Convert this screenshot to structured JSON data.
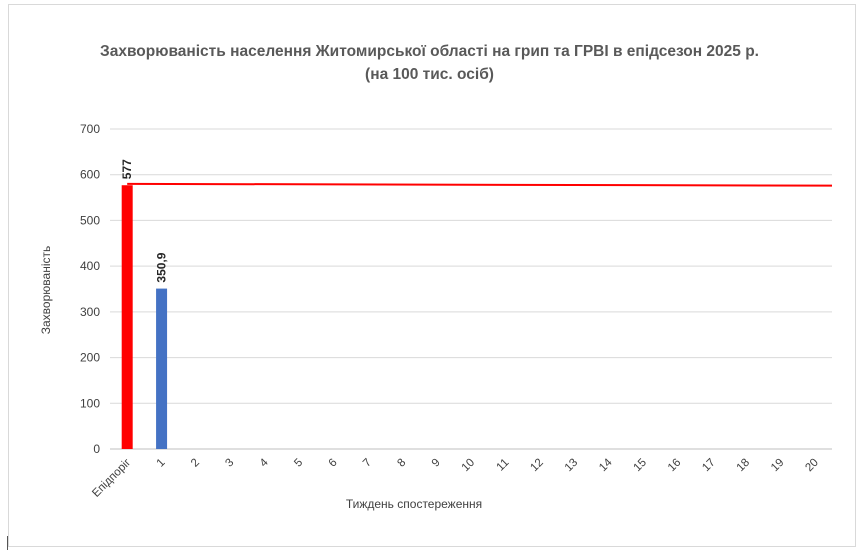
{
  "chart_data": {
    "type": "bar",
    "title": "Захворюваність населення Житомирської області на грип та ГРВІ в епідсезон 2025 р.",
    "subtitle": "(на 100 тис. осіб)",
    "xlabel": "Тиждень спостереження",
    "ylabel": "Захворюваність",
    "ylim": [
      0,
      700
    ],
    "yticks": [
      0,
      100,
      200,
      300,
      400,
      500,
      600,
      700
    ],
    "categories": [
      "Епідпоріг",
      "1",
      "2",
      "3",
      "4",
      "5",
      "6",
      "7",
      "8",
      "9",
      "10",
      "11",
      "12",
      "13",
      "14",
      "15",
      "16",
      "17",
      "18",
      "19",
      "20"
    ],
    "bars": [
      {
        "category": "Епідпоріг",
        "value": 577,
        "label": "577",
        "color": "#ff0000"
      },
      {
        "category": "1",
        "value": 350.9,
        "label": "350,9",
        "color": "#4472c4"
      }
    ],
    "threshold_line": {
      "start": 580,
      "end": 576,
      "color": "#ff0000"
    },
    "grid": true,
    "legend": "none"
  }
}
